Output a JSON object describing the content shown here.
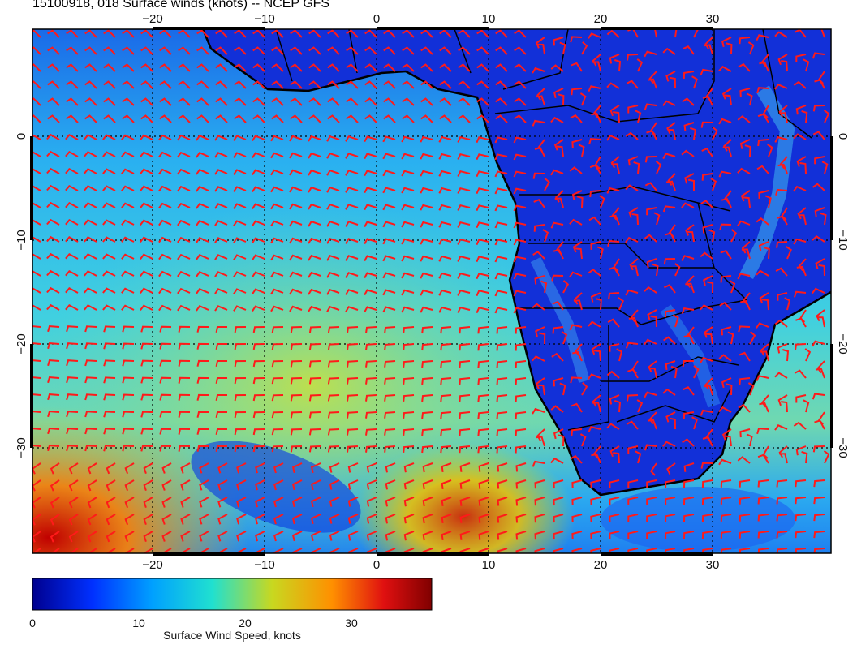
{
  "title": "15100918, 018 Surface winds (knots) -- NCEP GFS",
  "map": {
    "lon_ticks": [
      "−20",
      "−10",
      "0",
      "10",
      "20",
      "30"
    ],
    "lat_ticks": [
      "0",
      "−10",
      "−20",
      "−30"
    ],
    "colors": {
      "barb": "#ff1a1a",
      "coast": "#000000",
      "grid": "#000000"
    }
  },
  "colorbar": {
    "label": "Surface Wind Speed, knots",
    "ticks": [
      "0",
      "10",
      "20",
      "30"
    ],
    "colors": [
      "#00008f",
      "#0030ff",
      "#00a0ff",
      "#20e0d0",
      "#c8d820",
      "#ff9000",
      "#e01010",
      "#800000"
    ]
  }
}
